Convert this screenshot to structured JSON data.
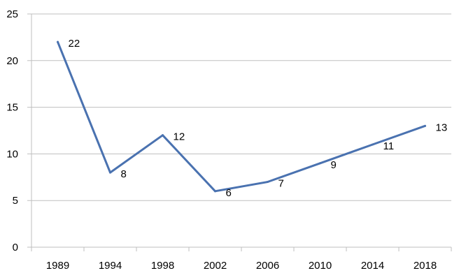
{
  "chart_data": {
    "type": "line",
    "title": "",
    "xlabel": "",
    "ylabel": "",
    "categories": [
      "1989",
      "1994",
      "1998",
      "2002",
      "2006",
      "2010",
      "2014",
      "2018"
    ],
    "series": [
      {
        "values": [
          22,
          8,
          12,
          6,
          7,
          9,
          11,
          13
        ],
        "data_labels": [
          "22",
          "8",
          "12",
          "6",
          "7",
          "9",
          "11",
          "13"
        ]
      }
    ],
    "ylim": [
      0,
      25
    ],
    "yticks": [
      0,
      5,
      10,
      15,
      20,
      25
    ],
    "ytick_labels": [
      "0",
      "5",
      "10",
      "15",
      "20",
      "25"
    ],
    "grid": "horizontal",
    "legend": "none",
    "colors": {
      "line": "#4a72b0",
      "grid": "#bfbfbf",
      "axis": "#bfbfbf"
    }
  }
}
